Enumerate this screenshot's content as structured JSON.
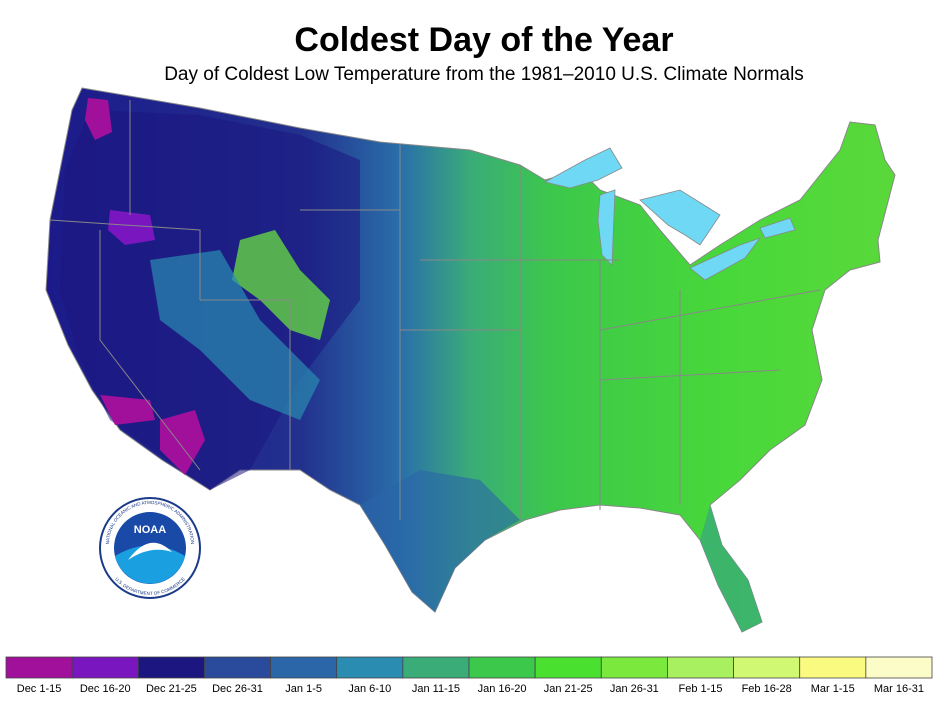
{
  "title": "Coldest Day of the Year",
  "subtitle": "Day of Coldest Low Temperature from the 1981–2010 U.S. Climate Normals",
  "logo": {
    "name": "NOAA",
    "ring_top": "NATIONAL OCEANIC AND ATMOSPHERIC ADMINISTRATION",
    "ring_bottom": "U.S. DEPARTMENT OF COMMERCE"
  },
  "legend": {
    "items": [
      {
        "label": "Dec 1-15",
        "color": "#a0109a"
      },
      {
        "label": "Dec 16-20",
        "color": "#7a16c0"
      },
      {
        "label": "Dec 21-25",
        "color": "#1c1680"
      },
      {
        "label": "Dec 26-31",
        "color": "#2a4a9c"
      },
      {
        "label": "Jan 1-5",
        "color": "#2a66a8"
      },
      {
        "label": "Jan 6-10",
        "color": "#2a8cb0"
      },
      {
        "label": "Jan 11-15",
        "color": "#3aac78"
      },
      {
        "label": "Jan 16-20",
        "color": "#3cc84a"
      },
      {
        "label": "Jan 21-25",
        "color": "#4ae030"
      },
      {
        "label": "Jan 26-31",
        "color": "#7ae83c"
      },
      {
        "label": "Feb 1-15",
        "color": "#a8f060"
      },
      {
        "label": "Feb 16-28",
        "color": "#d0f872"
      },
      {
        "label": "Mar 1-15",
        "color": "#fafa80"
      },
      {
        "label": "Mar 16-31",
        "color": "#fcfcc8"
      }
    ]
  }
}
